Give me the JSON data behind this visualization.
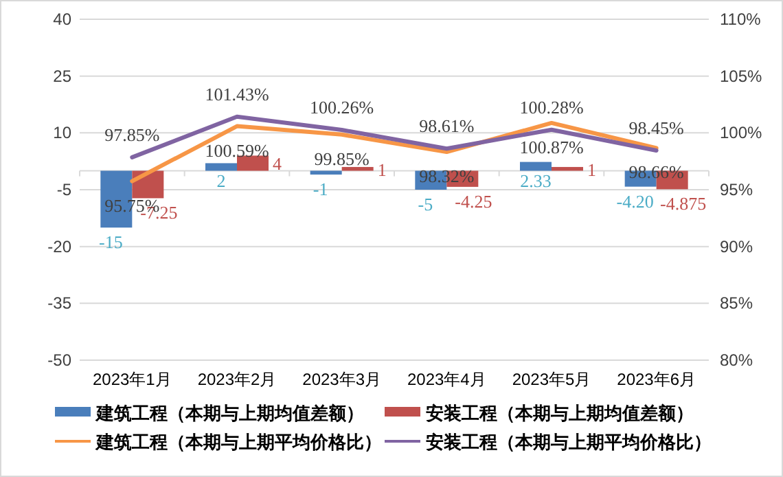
{
  "chart_data": {
    "type": "bar",
    "categories": [
      "2023年1月",
      "2023年2月",
      "2023年3月",
      "2023年4月",
      "2023年5月",
      "2023年6月"
    ],
    "series": [
      {
        "name": "建筑工程（本期与上期均值差额）",
        "color": "#4a7ebb",
        "values": [
          -15,
          2,
          -1,
          -5,
          2.33,
          -4.2
        ],
        "value_labels": [
          "-15",
          "2",
          "-1",
          "-5",
          "2.33",
          "-4.20"
        ]
      },
      {
        "name": "安装工程（本期与上期均值差额）",
        "color": "#c0504d",
        "values": [
          -7.25,
          4,
          1,
          -4.25,
          1,
          -4.875
        ],
        "value_labels": [
          "-7.25",
          "4",
          "1",
          "-4.25",
          "1",
          "-4.875"
        ]
      },
      {
        "name": "建筑工程（本期与上期平均价格比）",
        "type": "line",
        "axis": "y2",
        "color": "#f79646",
        "values": [
          95.75,
          100.59,
          99.85,
          98.32,
          100.87,
          98.66
        ],
        "value_labels": [
          "95.75%",
          "100.59%",
          "99.85%",
          "98.32%",
          "100.87%",
          "98.66%"
        ]
      },
      {
        "name": "安装工程（本期与上期平均价格比）",
        "type": "line",
        "axis": "y2",
        "color": "#8064a2",
        "values": [
          97.85,
          101.43,
          100.26,
          98.61,
          100.28,
          98.45
        ],
        "value_labels": [
          "97.85%",
          "101.43%",
          "100.26%",
          "98.61%",
          "100.28%",
          "98.45%"
        ]
      }
    ],
    "ylim": [
      -50,
      40
    ],
    "yticks": [
      -50,
      -35,
      -20,
      -5,
      10,
      25,
      40
    ],
    "y2lim": [
      80,
      110
    ],
    "y2ticks": [
      {
        "value": 80,
        "label": "80%"
      },
      {
        "value": 85,
        "label": "85%"
      },
      {
        "value": 90,
        "label": "90%"
      },
      {
        "value": 95,
        "label": "95%"
      },
      {
        "value": 100,
        "label": "100%"
      },
      {
        "value": 105,
        "label": "105%"
      },
      {
        "value": 110,
        "label": "110%"
      }
    ],
    "grid": "y",
    "legend": "bottom"
  }
}
